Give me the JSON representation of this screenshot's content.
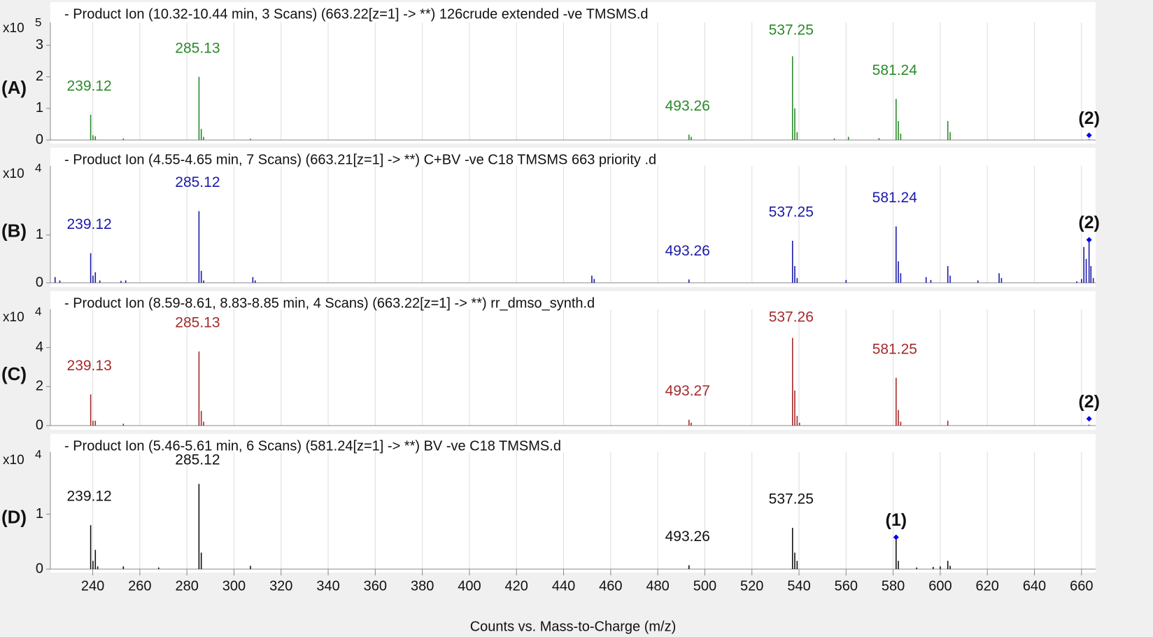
{
  "chart_data": [
    {
      "type": "spectrum",
      "title": "- Product Ion (10.32-10.44 min, 3 Scans) (663.22[z=1] -> **) 126crude extended -ve TMSMS.d",
      "panel_label": "(A)",
      "multiplier_base": "x10",
      "multiplier_exp": 5,
      "color": "#2a8a2a",
      "xlim": [
        222,
        666
      ],
      "ylim": [
        0,
        3.5
      ],
      "yticks": [
        0,
        1,
        2,
        3
      ],
      "x": [
        239.12,
        240.1,
        241.1,
        253,
        285.13,
        286.1,
        287.1,
        307,
        493.26,
        494.2,
        537.25,
        538.2,
        539.2,
        555,
        561,
        574,
        581.24,
        582.2,
        583.2,
        603.2,
        604.2,
        663.2
      ],
      "values": [
        0.8,
        0.15,
        0.12,
        0.05,
        2.0,
        0.35,
        0.1,
        0.04,
        0.17,
        0.1,
        2.65,
        1.0,
        0.25,
        0.05,
        0.1,
        0.06,
        1.3,
        0.6,
        0.2,
        0.6,
        0.25,
        0.03
      ],
      "peak_labels": [
        239.12,
        285.13,
        493.26,
        537.25,
        581.24
      ],
      "marker": {
        "label": "(2)",
        "x": 663.22,
        "y": 0.15
      }
    },
    {
      "type": "spectrum",
      "title": "- Product Ion (4.55-4.65 min, 7 Scans) (663.21[z=1] -> **) C+BV -ve C18 TMSMS 663 priority .d",
      "panel_label": "(B)",
      "multiplier_base": "x10",
      "multiplier_exp": 4,
      "color": "#1a1aa8",
      "xlim": [
        222,
        666
      ],
      "ylim": [
        0,
        2.3
      ],
      "yticks": [
        0,
        1
      ],
      "x": [
        224,
        226,
        239.12,
        240.1,
        241.1,
        243,
        252,
        254,
        285.12,
        286.1,
        287.1,
        308,
        309,
        452,
        453,
        493.26,
        537.25,
        538.2,
        539.2,
        560,
        581.24,
        582.2,
        583.2,
        594,
        596,
        603.2,
        604.2,
        616,
        625,
        626,
        658,
        660,
        661,
        662,
        663.21,
        664,
        665
      ],
      "values": [
        0.12,
        0.05,
        0.62,
        0.15,
        0.22,
        0.05,
        0.04,
        0.05,
        1.5,
        0.25,
        0.05,
        0.12,
        0.05,
        0.15,
        0.08,
        0.07,
        0.88,
        0.35,
        0.1,
        0.06,
        1.18,
        0.45,
        0.2,
        0.12,
        0.06,
        0.35,
        0.15,
        0.05,
        0.2,
        0.1,
        0.03,
        0.08,
        0.75,
        0.5,
        0.9,
        0.35,
        0.1
      ],
      "peak_labels": [
        239.12,
        285.12,
        493.26,
        537.25,
        581.24
      ],
      "marker": {
        "label": "(2)",
        "x": 663.21,
        "y": 0.9
      }
    },
    {
      "type": "spectrum",
      "title": "- Product Ion (8.59-8.61, 8.83-8.85 min, 4 Scans) (663.22[z=1] -> **) rr_dmso_synth.d",
      "panel_label": "(C)",
      "multiplier_base": "x10",
      "multiplier_exp": 4,
      "color": "#a52a2a",
      "xlim": [
        222,
        666
      ],
      "ylim": [
        0,
        5.6
      ],
      "yticks": [
        0,
        2,
        4
      ],
      "x": [
        239.13,
        240.1,
        241.1,
        253,
        285.13,
        286.1,
        287.1,
        493.27,
        494.2,
        537.26,
        538.2,
        539.2,
        540.2,
        581.25,
        582.2,
        583.2,
        603.2,
        663.2
      ],
      "values": [
        1.6,
        0.25,
        0.25,
        0.1,
        3.8,
        0.75,
        0.2,
        0.3,
        0.15,
        4.5,
        1.8,
        0.5,
        0.15,
        2.45,
        0.8,
        0.2,
        0.25,
        0.05
      ],
      "peak_labels": [
        239.13,
        285.13,
        493.27,
        537.26,
        581.25
      ],
      "marker": {
        "label": "(2)",
        "x": 663.22,
        "y": 0.35
      }
    },
    {
      "type": "spectrum",
      "title": "- Product Ion (5.46-5.61 min, 6 Scans) (581.24[z=1] -> **) BV -ve C18 TMSMS.d",
      "panel_label": "(D)",
      "multiplier_base": "x10",
      "multiplier_exp": 4,
      "color": "#111111",
      "xlim": [
        222,
        666
      ],
      "ylim": [
        0,
        2
      ],
      "yticks": [
        0,
        1
      ],
      "xticks": [
        240,
        260,
        280,
        300,
        320,
        340,
        360,
        380,
        400,
        420,
        440,
        460,
        480,
        500,
        520,
        540,
        560,
        580,
        600,
        620,
        640,
        660
      ],
      "xlabel": "Counts vs. Mass-to-Charge (m/z)",
      "x": [
        239.12,
        240.1,
        241.1,
        242.1,
        253,
        268,
        285.12,
        286.1,
        307,
        493.26,
        537.25,
        538.2,
        539.2,
        581.24,
        582.2,
        590,
        597,
        600,
        603.2,
        604.2
      ],
      "values": [
        0.8,
        0.15,
        0.35,
        0.05,
        0.05,
        0.03,
        1.55,
        0.3,
        0.06,
        0.07,
        0.75,
        0.3,
        0.15,
        0.6,
        0.15,
        0.03,
        0.04,
        0.05,
        0.15,
        0.06
      ],
      "peak_labels": [
        239.12,
        285.12,
        493.26,
        537.25
      ],
      "marker": {
        "label": "(1)",
        "x": 581.24,
        "y": 0.58
      }
    }
  ]
}
